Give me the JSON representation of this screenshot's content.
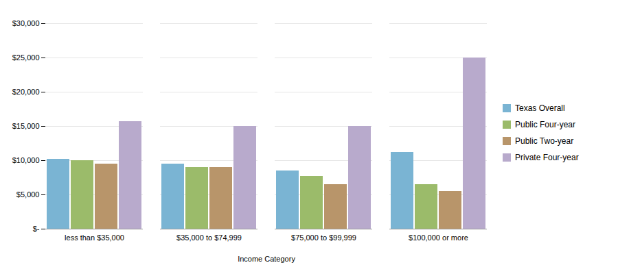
{
  "chart_data": {
    "type": "bar",
    "categories": [
      "less than $35,000",
      "$35,000 to $74,999",
      "$75,000 to $99,999",
      "$100,000 or more"
    ],
    "series": [
      {
        "name": "Texas Overall",
        "color": "#7AB4D3",
        "values": [
          10200,
          9500,
          8500,
          11200
        ]
      },
      {
        "name": "Public Four-year",
        "color": "#9BBB6A",
        "values": [
          10000,
          9000,
          7700,
          6500
        ]
      },
      {
        "name": "Public Two-year",
        "color": "#B8956A",
        "values": [
          9500,
          9000,
          6500,
          5500
        ]
      },
      {
        "name": "Private Four-year",
        "color": "#B8AACC",
        "values": [
          15700,
          15000,
          15000,
          25000
        ]
      }
    ],
    "xlabel": "Income Category",
    "ylim": [
      0,
      30000
    ],
    "yticks": [
      {
        "value": 0,
        "label": "$-"
      },
      {
        "value": 5000,
        "label": "$5,000"
      },
      {
        "value": 10000,
        "label": "$10,000"
      },
      {
        "value": 15000,
        "label": "$15,000"
      },
      {
        "value": 20000,
        "label": "$20,000"
      },
      {
        "value": 25000,
        "label": "$25,000"
      },
      {
        "value": 30000,
        "label": "$30,000"
      }
    ],
    "grid": true,
    "legend": "right"
  }
}
